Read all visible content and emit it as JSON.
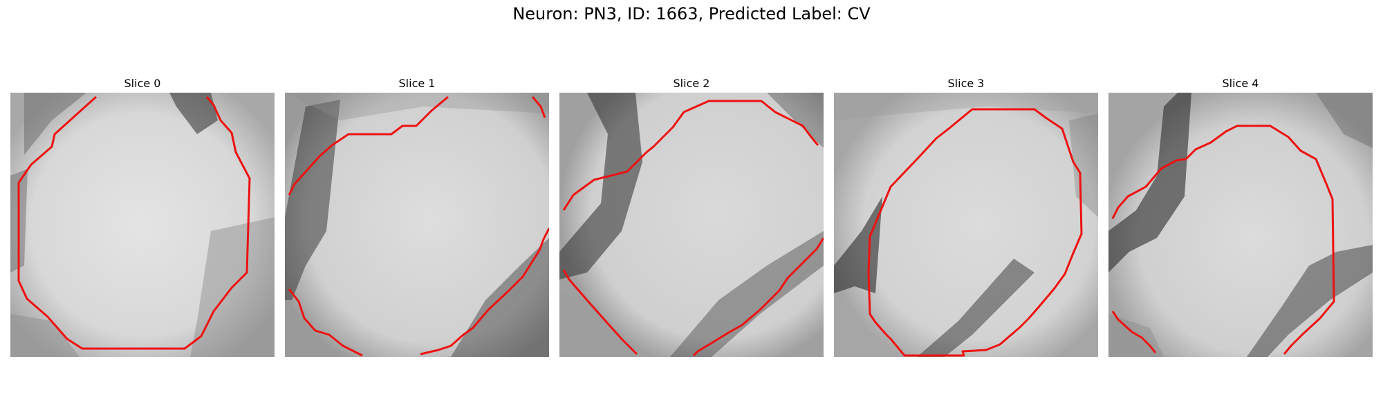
{
  "figure": {
    "title": "Neuron: PN3, ID: 1663, Predicted Label: CV"
  },
  "panels": [
    {
      "title": "Slice 0"
    },
    {
      "title": "Slice 1"
    },
    {
      "title": "Slice 2"
    },
    {
      "title": "Slice 3"
    },
    {
      "title": "Slice 4"
    }
  ],
  "colors": {
    "contour": "#ee1111",
    "background": "#ffffff"
  }
}
